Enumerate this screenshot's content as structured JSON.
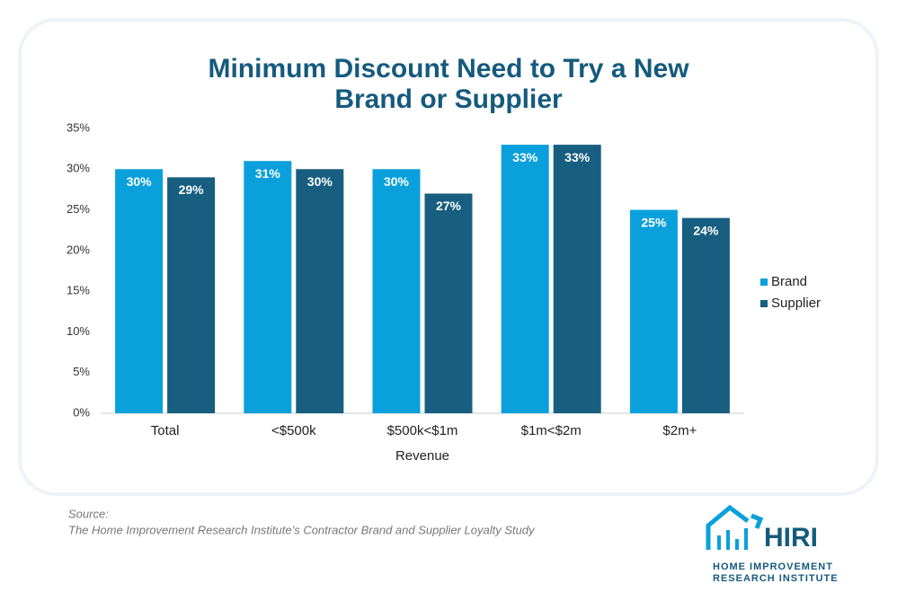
{
  "chart_data": {
    "type": "bar",
    "title": [
      "Minimum Discount Need to Try a New",
      "Brand or Supplier"
    ],
    "x_label": "Revenue",
    "categories": [
      "Total",
      "<$500k",
      "$500k<$1m",
      "$1m<$2m",
      "$2m+"
    ],
    "series": [
      {
        "name": "Brand",
        "color": "#0aa0dc",
        "values": [
          30,
          31,
          30,
          33,
          25
        ],
        "value_labels": [
          "30%",
          "31%",
          "30%",
          "33%",
          "25%"
        ]
      },
      {
        "name": "Supplier",
        "color": "#175e80",
        "values": [
          29,
          30,
          27,
          33,
          24
        ],
        "value_labels": [
          "29%",
          "30%",
          "27%",
          "33%",
          "24%"
        ]
      }
    ],
    "ylim": [
      0,
      35
    ],
    "yticks": [
      {
        "value": 0,
        "label": "0%"
      },
      {
        "value": 5,
        "label": "5%"
      },
      {
        "value": 10,
        "label": "10%"
      },
      {
        "value": 15,
        "label": "15%"
      },
      {
        "value": 20,
        "label": "20%"
      },
      {
        "value": 25,
        "label": "25%"
      },
      {
        "value": 30,
        "label": "30%"
      },
      {
        "value": 35,
        "label": "35%"
      }
    ],
    "grid": false,
    "legend": "right"
  },
  "source_label": "Source:",
  "source": "The Home Improvement Research Institute’s Contractor Brand and Supplier Loyalty Study",
  "logo": {
    "name": "HIRI",
    "line1": "HOME IMPROVEMENT",
    "line2": "RESEARCH INSTITUTE"
  }
}
